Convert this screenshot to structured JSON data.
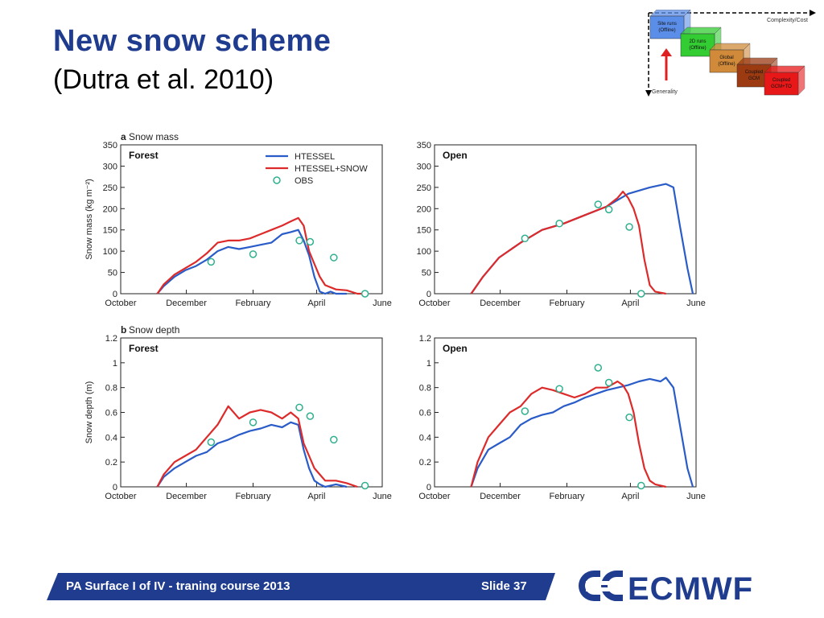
{
  "slide": {
    "title": "New snow scheme",
    "subtitle": "(Dutra et al. 2010)",
    "footer": "PA Surface I of IV - traning course 2013",
    "slide_number": "Slide 37",
    "logo_text": "ECMWF"
  },
  "inset": {
    "axis_top": "Complexity/Cost",
    "axis_left": "Generality",
    "boxes": [
      {
        "line1": "Site runs",
        "line2": "(Offline)",
        "color": "#5b8ee8"
      },
      {
        "line1": "2D runs",
        "line2": "(Offline)",
        "color": "#33cc33"
      },
      {
        "line1": "Global",
        "line2": "(Offline)",
        "color": "#d08a3a"
      },
      {
        "line1": "Coupled",
        "line2": "GCM",
        "color": "#9c3a12"
      },
      {
        "line1": "Coupled",
        "line2": "GCM+TO",
        "color": "#e81818"
      }
    ]
  },
  "chart_data": [
    {
      "panel_letter": "a",
      "panel_title": "Snow mass",
      "label": "Forest",
      "type": "line",
      "ylabel": "Snow mass (kg m⁻²)",
      "xticks": [
        "October",
        "December",
        "February",
        "April",
        "June"
      ],
      "xtick_days": [
        0,
        61,
        123,
        182,
        243
      ],
      "ylim": [
        0,
        350
      ],
      "yticks": [
        "0",
        "50",
        "100",
        "150",
        "200",
        "250",
        "300",
        "350"
      ],
      "legend": [
        "HTESSEL",
        "HTESSEL+SNOW",
        "OBS"
      ],
      "series": [
        {
          "name": "HTESSEL",
          "color": "#2a5cc8",
          "x": [
            34,
            40,
            50,
            60,
            70,
            80,
            90,
            100,
            110,
            120,
            130,
            140,
            150,
            158,
            165,
            170,
            175,
            180,
            185,
            190,
            195,
            200,
            210
          ],
          "y": [
            0,
            18,
            40,
            55,
            65,
            80,
            100,
            110,
            105,
            110,
            115,
            120,
            140,
            145,
            150,
            125,
            90,
            40,
            5,
            0,
            5,
            0,
            0
          ]
        },
        {
          "name": "HTESSEL+SNOW",
          "color": "#dd2a2a",
          "x": [
            34,
            40,
            50,
            60,
            70,
            80,
            90,
            100,
            110,
            120,
            130,
            140,
            150,
            158,
            165,
            170,
            175,
            180,
            185,
            190,
            200,
            210,
            220,
            230
          ],
          "y": [
            0,
            22,
            45,
            60,
            75,
            95,
            120,
            125,
            125,
            130,
            140,
            150,
            160,
            170,
            178,
            160,
            100,
            70,
            40,
            20,
            10,
            8,
            0,
            0
          ]
        },
        {
          "name": "OBS",
          "color": "#2fb08f",
          "x": [
            84,
            123,
            166,
            176,
            198,
            227
          ],
          "y": [
            75,
            93,
            125,
            122,
            85,
            0
          ]
        }
      ]
    },
    {
      "panel_letter": "",
      "panel_title": "",
      "label": "Open",
      "type": "line",
      "ylabel": "",
      "xticks": [
        "October",
        "December",
        "February",
        "April",
        "June"
      ],
      "xtick_days": [
        0,
        61,
        123,
        182,
        243
      ],
      "ylim": [
        0,
        350
      ],
      "yticks": [
        "0",
        "50",
        "100",
        "150",
        "200",
        "250",
        "300",
        "350"
      ],
      "legend": [],
      "series": [
        {
          "name": "HTESSEL",
          "color": "#2a5cc8",
          "x": [
            34,
            45,
            60,
            80,
            100,
            120,
            140,
            160,
            180,
            200,
            215,
            222,
            228,
            235,
            240
          ],
          "y": [
            0,
            40,
            85,
            120,
            150,
            165,
            185,
            205,
            235,
            250,
            258,
            250,
            160,
            60,
            0
          ]
        },
        {
          "name": "HTESSEL+SNOW",
          "color": "#dd2a2a",
          "x": [
            34,
            45,
            60,
            80,
            100,
            120,
            140,
            160,
            170,
            175,
            180,
            185,
            190,
            195,
            200,
            205,
            215
          ],
          "y": [
            0,
            40,
            85,
            120,
            150,
            165,
            185,
            205,
            225,
            240,
            225,
            200,
            160,
            80,
            20,
            5,
            0
          ]
        },
        {
          "name": "OBS",
          "color": "#2fb08f",
          "x": [
            84,
            116,
            152,
            162,
            181,
            192
          ],
          "y": [
            130,
            165,
            210,
            198,
            157,
            0
          ]
        }
      ]
    },
    {
      "panel_letter": "b",
      "panel_title": "Snow depth",
      "label": "Forest",
      "type": "line",
      "ylabel": "Snow depth (m)",
      "xticks": [
        "October",
        "December",
        "February",
        "April",
        "June"
      ],
      "xtick_days": [
        0,
        61,
        123,
        182,
        243
      ],
      "ylim": [
        0,
        1.2
      ],
      "yticks": [
        "0",
        "0.2",
        "0.4",
        "0.6",
        "0.8",
        "1",
        "1.2"
      ],
      "legend": [],
      "series": [
        {
          "name": "HTESSEL",
          "color": "#2a5cc8",
          "x": [
            34,
            40,
            50,
            60,
            70,
            80,
            90,
            100,
            110,
            120,
            130,
            140,
            150,
            158,
            165,
            170,
            175,
            180,
            185,
            190,
            200,
            210
          ],
          "y": [
            0,
            0.08,
            0.15,
            0.2,
            0.25,
            0.28,
            0.35,
            0.38,
            0.42,
            0.45,
            0.47,
            0.5,
            0.48,
            0.52,
            0.5,
            0.3,
            0.15,
            0.05,
            0.02,
            0,
            0.02,
            0
          ]
        },
        {
          "name": "HTESSEL+SNOW",
          "color": "#dd2a2a",
          "x": [
            34,
            40,
            50,
            60,
            70,
            80,
            90,
            100,
            110,
            120,
            130,
            140,
            150,
            158,
            165,
            170,
            175,
            180,
            185,
            190,
            200,
            210,
            220
          ],
          "y": [
            0,
            0.1,
            0.2,
            0.25,
            0.3,
            0.4,
            0.5,
            0.65,
            0.55,
            0.6,
            0.62,
            0.6,
            0.55,
            0.6,
            0.55,
            0.35,
            0.25,
            0.15,
            0.1,
            0.05,
            0.05,
            0.03,
            0
          ]
        },
        {
          "name": "OBS",
          "color": "#2fb08f",
          "x": [
            84,
            123,
            166,
            176,
            198,
            227
          ],
          "y": [
            0.36,
            0.52,
            0.64,
            0.57,
            0.38,
            0.01
          ]
        }
      ]
    },
    {
      "panel_letter": "",
      "panel_title": "",
      "label": "Open",
      "type": "line",
      "ylabel": "",
      "xticks": [
        "October",
        "December",
        "February",
        "April",
        "June"
      ],
      "xtick_days": [
        0,
        61,
        123,
        182,
        243
      ],
      "ylim": [
        0,
        1.2
      ],
      "yticks": [
        "0",
        "0.2",
        "0.4",
        "0.6",
        "0.8",
        "1",
        "1.2"
      ],
      "legend": [],
      "series": [
        {
          "name": "HTESSEL",
          "color": "#2a5cc8",
          "x": [
            34,
            40,
            50,
            60,
            70,
            80,
            90,
            100,
            110,
            120,
            130,
            140,
            150,
            160,
            170,
            180,
            190,
            200,
            210,
            215,
            222,
            228,
            235,
            240
          ],
          "y": [
            0,
            0.15,
            0.3,
            0.35,
            0.4,
            0.5,
            0.55,
            0.58,
            0.6,
            0.65,
            0.68,
            0.72,
            0.75,
            0.78,
            0.8,
            0.82,
            0.85,
            0.87,
            0.85,
            0.88,
            0.8,
            0.5,
            0.15,
            0
          ]
        },
        {
          "name": "HTESSEL+SNOW",
          "color": "#dd2a2a",
          "x": [
            34,
            40,
            50,
            60,
            70,
            80,
            90,
            100,
            110,
            120,
            130,
            140,
            150,
            160,
            170,
            175,
            180,
            185,
            190,
            195,
            200,
            205,
            215
          ],
          "y": [
            0,
            0.2,
            0.4,
            0.5,
            0.6,
            0.65,
            0.75,
            0.8,
            0.78,
            0.75,
            0.72,
            0.75,
            0.8,
            0.8,
            0.85,
            0.82,
            0.75,
            0.6,
            0.35,
            0.15,
            0.05,
            0.02,
            0
          ]
        },
        {
          "name": "OBS",
          "color": "#2fb08f",
          "x": [
            84,
            116,
            152,
            162,
            181,
            192
          ],
          "y": [
            0.61,
            0.79,
            0.96,
            0.84,
            0.56,
            0.01
          ]
        }
      ]
    }
  ]
}
